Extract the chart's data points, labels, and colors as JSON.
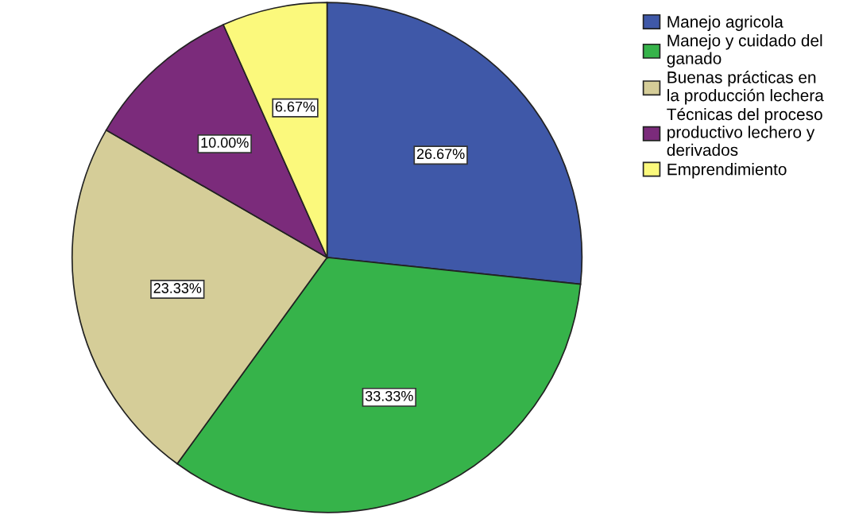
{
  "chart_data": {
    "type": "pie",
    "categories": [
      "Manejo agricola",
      "Manejo y cuidado del ganado",
      "Buenas prácticas en la producción lechera",
      "Técnicas del proceso productivo lechero y derivados",
      "Emprendimiento"
    ],
    "values": [
      26.67,
      33.33,
      23.33,
      10.0,
      6.67
    ],
    "value_labels": [
      "26.67%",
      "33.33%",
      "23.33%",
      "10.00%",
      "6.67%"
    ],
    "colors": [
      "#3f58a8",
      "#36b34a",
      "#d5cd98",
      "#7b2b7b",
      "#fbf97c"
    ],
    "legend": "top right"
  }
}
